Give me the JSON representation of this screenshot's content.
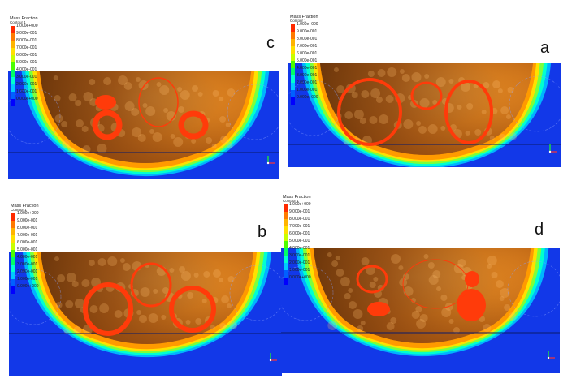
{
  "legend": {
    "title_line1": "Mass Fraction",
    "title_line2": "Contour 1",
    "ticks": [
      "1.000e+000",
      "9.000e-001",
      "8.000e-001",
      "7.000e-001",
      "6.000e-001",
      "5.000e-001",
      "4.000e-001",
      "3.000e-001",
      "2.000e-001",
      "1.000e-001",
      "0.000e+000"
    ],
    "colors": [
      "#ff2a00",
      "#ff7a00",
      "#ffb400",
      "#ffe000",
      "#c8ff00",
      "#4cff00",
      "#00ff66",
      "#00ffd0",
      "#00c8ff",
      "#0060ff",
      "#0000ff"
    ]
  },
  "panels": [
    {
      "letter": "c",
      "blobs": "c"
    },
    {
      "letter": "a",
      "blobs": "a"
    },
    {
      "letter": "b",
      "blobs": "b"
    },
    {
      "letter": "d",
      "blobs": "d"
    }
  ],
  "colors": {
    "background_blue": "#1238e8",
    "surface_orange": "#e88a22",
    "dark_brown": "#5a2a08",
    "droplet_red": "#ff3b0a"
  }
}
